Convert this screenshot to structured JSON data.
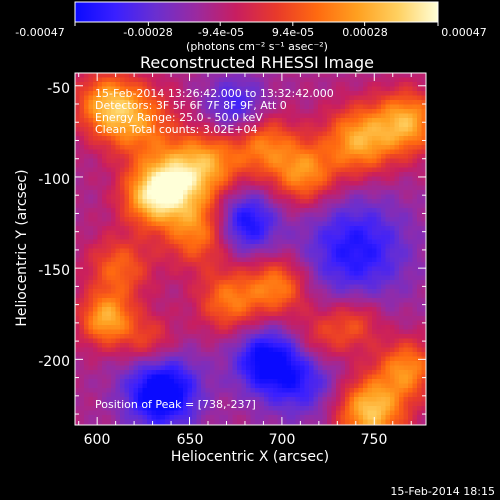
{
  "colorbar": {
    "ticks": [
      "-0.00047",
      "-0.00028",
      "-9.4e-05",
      "9.4e-05",
      "0.00028",
      "0.00047"
    ],
    "range": [
      -0.00047,
      0.00047
    ],
    "unit_label": "(photons cm⁻² s⁻¹ asec⁻²)",
    "colors": [
      "#0a0aff",
      "#3a20ff",
      "#6a2fd0",
      "#9a2aa0",
      "#c81e60",
      "#e83a2a",
      "#ff6a10",
      "#ffa020",
      "#ffd060",
      "#ffffd8"
    ]
  },
  "chart_data": {
    "type": "heatmap",
    "title": "Reconstructed RHESSI Image",
    "xlabel": "Heliocentric X (arcsec)",
    "ylabel": "Heliocentric Y (arcsec)",
    "xlim": [
      588,
      778
    ],
    "ylim": [
      -236,
      -43
    ],
    "x_ticks": [
      600,
      650,
      700,
      750
    ],
    "y_ticks": [
      -50,
      -100,
      -150,
      -200
    ],
    "annotations": [
      "15-Feb-2014 13:26:42.000 to 13:32:42.000",
      "Detectors: 3F 5F 6F 7F 8F 9F, Att 0",
      "Energy Range: 25.0 - 50.0 keV",
      "Clean    Total counts: 3.02E+04"
    ],
    "peak_label": "Position of Peak = [738,-237]",
    "peak": [
      738,
      -237
    ],
    "sources": [
      {
        "x": 605,
        "y": -60,
        "amp": 0.00035,
        "r": 12
      },
      {
        "x": 622,
        "y": -70,
        "amp": 0.0003,
        "r": 14
      },
      {
        "x": 640,
        "y": -104,
        "amp": 0.00045,
        "r": 13
      },
      {
        "x": 628,
        "y": -112,
        "amp": 0.0003,
        "r": 11
      },
      {
        "x": 660,
        "y": -92,
        "amp": 0.00034,
        "r": 13
      },
      {
        "x": 690,
        "y": -82,
        "amp": 0.0003,
        "r": 12
      },
      {
        "x": 712,
        "y": -98,
        "amp": 0.00035,
        "r": 12
      },
      {
        "x": 742,
        "y": -80,
        "amp": 0.0004,
        "r": 13
      },
      {
        "x": 768,
        "y": -70,
        "amp": 0.0004,
        "r": 12
      },
      {
        "x": 655,
        "y": -130,
        "amp": 0.00032,
        "r": 13
      },
      {
        "x": 612,
        "y": -150,
        "amp": 0.00026,
        "r": 12
      },
      {
        "x": 605,
        "y": -178,
        "amp": 0.0004,
        "r": 10
      },
      {
        "x": 628,
        "y": -190,
        "amp": 0.0002,
        "r": 10
      },
      {
        "x": 672,
        "y": -168,
        "amp": 0.0003,
        "r": 12
      },
      {
        "x": 698,
        "y": -160,
        "amp": 0.00032,
        "r": 11
      },
      {
        "x": 720,
        "y": -190,
        "amp": 0.00025,
        "r": 12
      },
      {
        "x": 740,
        "y": -180,
        "amp": 0.0002,
        "r": 10
      },
      {
        "x": 748,
        "y": -228,
        "amp": 0.00047,
        "r": 13
      },
      {
        "x": 768,
        "y": -205,
        "amp": 0.00033,
        "r": 11
      },
      {
        "x": 635,
        "y": -218,
        "amp": -0.00045,
        "r": 14
      },
      {
        "x": 710,
        "y": -208,
        "amp": -0.0003,
        "r": 16
      },
      {
        "x": 740,
        "y": -140,
        "amp": -0.0003,
        "r": 20
      },
      {
        "x": 680,
        "y": -125,
        "amp": -0.00035,
        "r": 12
      },
      {
        "x": 675,
        "y": -62,
        "amp": -0.00025,
        "r": 12
      },
      {
        "x": 690,
        "y": -200,
        "amp": -0.0003,
        "r": 12
      }
    ],
    "background": -0.00012
  },
  "footer": {
    "timestamp": "15-Feb-2014 18:15"
  }
}
